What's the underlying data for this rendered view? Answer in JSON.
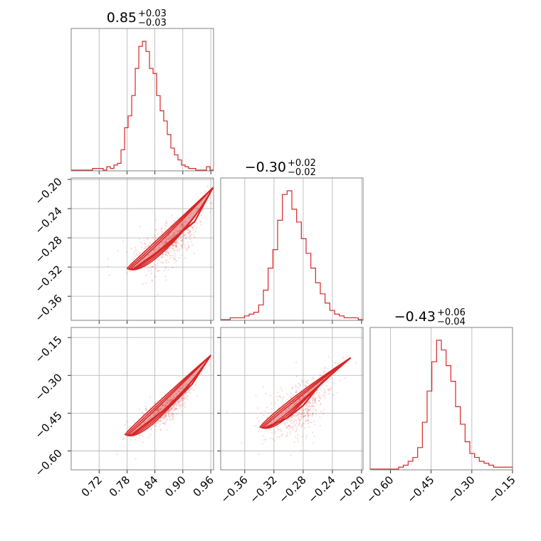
{
  "colors": {
    "accent": "#d62728",
    "grid": "#b0b0b0",
    "frame": "#808080"
  },
  "chart_data": {
    "type": "corner",
    "panels": [
      {
        "id": "p00",
        "kind": "histogram",
        "row": 0,
        "col": 0,
        "title": {
          "value": "0.85",
          "plus": "+0.03",
          "minus": "−0.03"
        },
        "xlim": [
          0.66,
          0.966
        ],
        "xticks": [
          0.72,
          0.78,
          0.84,
          0.9,
          0.96
        ],
        "counts": [
          0,
          0,
          0,
          0,
          0,
          0,
          1,
          1,
          1,
          0,
          2,
          1,
          3,
          4,
          12,
          25,
          32,
          44,
          60,
          73,
          76,
          70,
          60,
          57,
          44,
          35,
          29,
          21,
          13,
          9,
          6,
          3,
          2,
          1,
          1,
          0,
          0,
          0,
          2,
          0
        ]
      },
      {
        "id": "p11",
        "kind": "histogram",
        "row": 1,
        "col": 1,
        "title": {
          "value": "−0.30",
          "plus": "+0.02",
          "minus": "−0.02"
        },
        "xlim": [
          -0.393,
          -0.198
        ],
        "xticks": [
          -0.36,
          -0.32,
          -0.28,
          -0.24,
          -0.2
        ],
        "counts": [
          0,
          0,
          1,
          1,
          1,
          2,
          3,
          4,
          8,
          16,
          28,
          38,
          54,
          68,
          70,
          60,
          53,
          44,
          36,
          28,
          20,
          14,
          9,
          5,
          3,
          2,
          1,
          1,
          1,
          0
        ]
      },
      {
        "id": "p22",
        "kind": "histogram",
        "row": 2,
        "col": 2,
        "title": {
          "value": "−0.43",
          "plus": "+0.06",
          "minus": "−0.04"
        },
        "xlim": [
          -0.675,
          -0.15
        ],
        "xticks": [
          -0.6,
          -0.45,
          -0.3,
          -0.15
        ],
        "counts": [
          0,
          0,
          0,
          0,
          0,
          0,
          1,
          2,
          4,
          6,
          11,
          24,
          40,
          55,
          66,
          61,
          53,
          45,
          32,
          23,
          14,
          8,
          6,
          4,
          3,
          2,
          1,
          1,
          1,
          1
        ]
      },
      {
        "id": "p10",
        "kind": "scatter2d",
        "row": 1,
        "col": 0,
        "xlim": [
          0.66,
          0.966
        ],
        "ylim": [
          -0.393,
          -0.198
        ],
        "xticks": [
          0.72,
          0.78,
          0.84,
          0.9,
          0.96
        ],
        "yticks": [
          -0.2,
          -0.24,
          -0.28,
          -0.32,
          -0.36
        ],
        "ridge": [
          [
            0.795,
            -0.322
          ],
          [
            0.84,
            -0.302
          ],
          [
            0.88,
            -0.281
          ],
          [
            0.925,
            -0.258
          ],
          [
            0.965,
            -0.211
          ]
        ],
        "spread": 0.006
      },
      {
        "id": "p20",
        "kind": "scatter2d",
        "row": 2,
        "col": 0,
        "xlim": [
          0.66,
          0.966
        ],
        "ylim": [
          -0.675,
          -0.11
        ],
        "xticks": [
          0.72,
          0.78,
          0.84,
          0.9,
          0.96
        ],
        "yticks": [
          -0.15,
          -0.3,
          -0.45,
          -0.6
        ],
        "ridge": [
          [
            0.79,
            -0.535
          ],
          [
            0.84,
            -0.465
          ],
          [
            0.88,
            -0.41
          ],
          [
            0.92,
            -0.335
          ],
          [
            0.96,
            -0.22
          ]
        ],
        "spread": 0.01
      },
      {
        "id": "p21",
        "kind": "scatter2d",
        "row": 2,
        "col": 1,
        "xlim": [
          -0.393,
          -0.198
        ],
        "ylim": [
          -0.675,
          -0.11
        ],
        "xticks": [
          -0.36,
          -0.32,
          -0.28,
          -0.24,
          -0.2
        ],
        "yticks": [
          -0.15,
          -0.3,
          -0.45,
          -0.6
        ],
        "ridge": [
          [
            -0.33,
            -0.505
          ],
          [
            -0.302,
            -0.47
          ],
          [
            -0.28,
            -0.42
          ],
          [
            -0.255,
            -0.33
          ],
          [
            -0.215,
            -0.23
          ]
        ],
        "spread": 0.02
      }
    ],
    "tick_labels": {
      "col0_x": [
        "0.72",
        "0.78",
        "0.84",
        "0.90",
        "0.96"
      ],
      "col1_x": [
        "−0.36",
        "−0.32",
        "−0.28",
        "−0.24",
        "−0.20"
      ],
      "col2_x": [
        "−0.60",
        "−0.45",
        "−0.30",
        "−0.15"
      ],
      "row1_y": [
        "−0.20",
        "−0.24",
        "−0.28",
        "−0.32",
        "−0.36"
      ],
      "row2_y": [
        "−0.15",
        "−0.30",
        "−0.45",
        "−0.60"
      ]
    }
  }
}
